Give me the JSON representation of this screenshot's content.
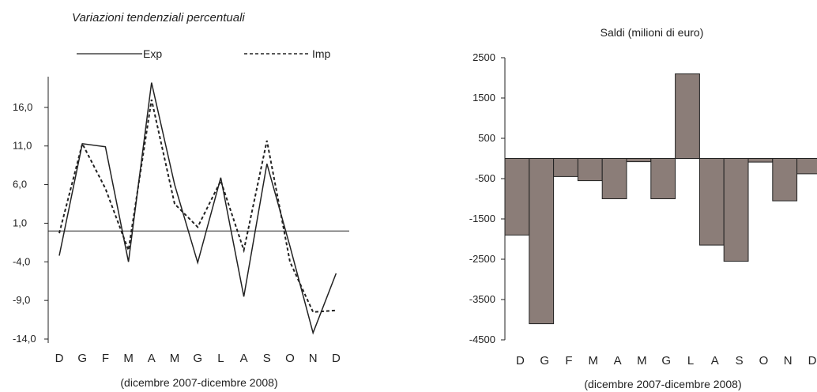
{
  "chart_data": [
    {
      "type": "line",
      "title": "Variazioni tendenziali percentuali",
      "xlabel": "(dicembre 2007-dicembre 2008)",
      "categories": [
        "D",
        "G",
        "F",
        "M",
        "A",
        "M",
        "G",
        "L",
        "A",
        "S",
        "O",
        "N",
        "D"
      ],
      "y_ticks": [
        "16,0",
        "11,0",
        "6,0",
        "1,0",
        "-4,0",
        "-9,0",
        "-14,0"
      ],
      "ylim": [
        -14,
        21
      ],
      "series": [
        {
          "name": "Exp",
          "style": "solid",
          "color": "#222222",
          "values": [
            -3.2,
            11.3,
            10.9,
            -4.0,
            19.2,
            6.0,
            -4.1,
            6.9,
            -8.5,
            8.7,
            -2.0,
            -13.2,
            -5.5
          ]
        },
        {
          "name": "Imp",
          "style": "dashed",
          "color": "#222222",
          "values": [
            -0.3,
            11.3,
            5.5,
            -2.5,
            17.0,
            3.5,
            0.5,
            6.5,
            -2.5,
            11.7,
            -4.0,
            -10.5,
            -10.3
          ]
        }
      ],
      "reference_line": 0,
      "legend": "top"
    },
    {
      "type": "bar",
      "title": "Saldi (milioni di euro)",
      "xlabel": "(dicembre 2007-dicembre 2008)",
      "categories": [
        "D",
        "G",
        "F",
        "M",
        "A",
        "M",
        "G",
        "L",
        "A",
        "S",
        "O",
        "N",
        "D"
      ],
      "y_ticks": [
        "2500",
        "1500",
        "500",
        "-500",
        "-1500",
        "-2500",
        "-3500",
        "-4500"
      ],
      "ylim": [
        -4500,
        2500
      ],
      "values": [
        -1900,
        -4100,
        -450,
        -550,
        -1000,
        -80,
        -1000,
        2100,
        -2150,
        -2550,
        -90,
        -1050,
        -380
      ],
      "bar_color": "#8b7d78",
      "legend": "none"
    }
  ]
}
